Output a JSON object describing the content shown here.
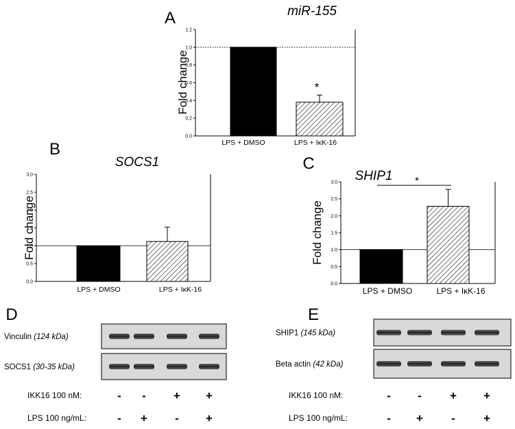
{
  "chart_data": [
    {
      "panel": "A",
      "type": "bar",
      "title": "miR-155",
      "ylabel": "Fold change",
      "categories": [
        "LPS + DMSO",
        "LPS + IκK-16"
      ],
      "values": [
        1.0,
        0.38
      ],
      "errors": [
        0,
        0.08
      ],
      "ylim": [
        0,
        1.2
      ],
      "yticks": [
        "0.0",
        "0.2",
        "0.4",
        "0.6",
        "0.8",
        "1.0",
        "1.2"
      ],
      "reference_line": 1.0,
      "significance": "*",
      "bar_styles": [
        "solid-black",
        "hatched"
      ]
    },
    {
      "panel": "B",
      "type": "bar",
      "title": "SOCS1",
      "ylabel": "Fold change",
      "categories": [
        "LPS + DMSO",
        "LPS + IκK-16"
      ],
      "values": [
        1.0,
        1.12
      ],
      "errors": [
        0,
        0.4
      ],
      "ylim": [
        0,
        3.0
      ],
      "yticks": [
        "0.0",
        "0.5",
        "1.0",
        "1.5",
        "2.0",
        "2.5",
        "3.0"
      ],
      "reference_line": 1.0,
      "bar_styles": [
        "solid-black",
        "hatched"
      ]
    },
    {
      "panel": "C",
      "type": "bar",
      "title": "SHIP1",
      "ylabel": "Fold change",
      "categories": [
        "LPS + DMSO",
        "LPS + IκK-16"
      ],
      "values": [
        1.0,
        2.28
      ],
      "errors": [
        0,
        0.5
      ],
      "ylim": [
        0,
        3.0
      ],
      "yticks": [
        "0.0",
        "0.5",
        "1.0",
        "1.5",
        "2.0",
        "2.5",
        "3.0"
      ],
      "reference_line": 1.0,
      "significance": "*",
      "bar_styles": [
        "solid-black",
        "hatched"
      ]
    }
  ],
  "blots": {
    "D": {
      "letter": "D",
      "rows": [
        {
          "name": "Vinculin",
          "mw": "(124 kDa)"
        },
        {
          "name": "SOCS1",
          "mw": "(30-35 kDa)"
        }
      ],
      "conditions": [
        {
          "label": "IKK16 100 nM:",
          "signs": [
            "-",
            "-",
            "+",
            "+"
          ]
        },
        {
          "label": "LPS 100 ng/mL:",
          "signs": [
            "-",
            "+",
            "-",
            "+"
          ]
        }
      ]
    },
    "E": {
      "letter": "E",
      "rows": [
        {
          "name": "SHIP1",
          "mw": "(145 kDa)"
        },
        {
          "name": "Beta actin",
          "mw": "(42 kDa)"
        }
      ],
      "conditions": [
        {
          "label": "IKK16 100 nM:",
          "signs": [
            "-",
            "-",
            "+",
            "+"
          ]
        },
        {
          "label": "LPS 100 ng/mL:",
          "signs": [
            "-",
            "+",
            "-",
            "+"
          ]
        }
      ]
    }
  }
}
